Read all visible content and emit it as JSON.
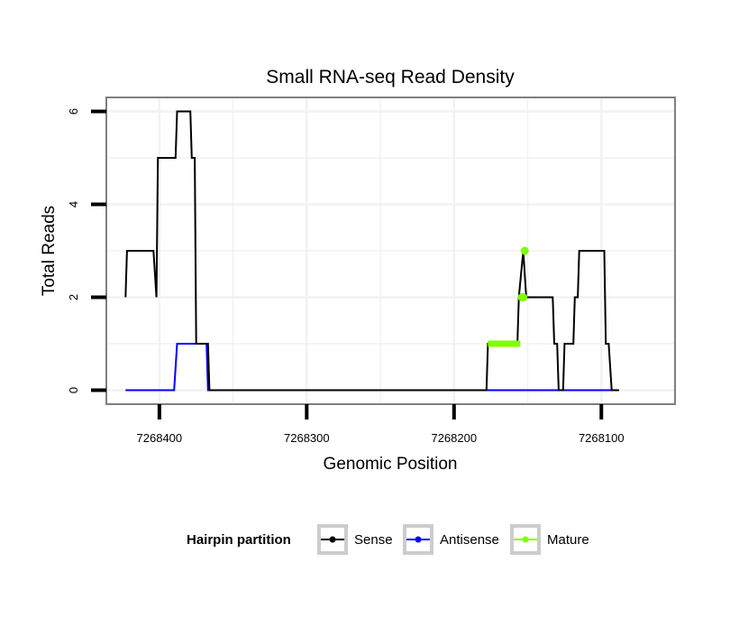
{
  "colors": {
    "sense": "#000000",
    "antisense": "#0000ff",
    "mature": "#7fff00",
    "panel_border": "#7f7f7f",
    "grid": "#f2f2f2",
    "legend_key_border": "#cccccc"
  },
  "chart_data": {
    "type": "line",
    "title": "Small RNA-seq Read Density",
    "xlabel": "Genomic Position",
    "ylabel": "Total Reads",
    "x_reversed": true,
    "xlim": [
      7268436,
      7268050
    ],
    "ylim": [
      -0.3,
      6.3
    ],
    "x_ticks": [
      7268400,
      7268300,
      7268200,
      7268100
    ],
    "x_tick_labels": [
      "7268400",
      "7268300",
      "7268200",
      "7268100"
    ],
    "y_ticks": [
      0,
      2,
      4,
      6
    ],
    "y_tick_labels": [
      "0",
      "2",
      "4",
      "6"
    ],
    "grid": true,
    "legend": {
      "title": "Hairpin partition",
      "position": "bottom",
      "entries": [
        "Sense",
        "Antisense",
        "Mature"
      ]
    },
    "series": [
      {
        "name": "Sense",
        "color": "#000000",
        "points": [
          [
            7268423,
            2
          ],
          [
            7268422,
            3
          ],
          [
            7268404,
            3
          ],
          [
            7268402,
            2
          ],
          [
            7268401,
            5
          ],
          [
            7268389,
            5
          ],
          [
            7268388,
            6
          ],
          [
            7268379,
            6
          ],
          [
            7268378,
            5
          ],
          [
            7268376,
            5
          ],
          [
            7268375,
            1
          ],
          [
            7268367,
            1
          ],
          [
            7268366,
            0
          ],
          [
            7268178,
            0
          ],
          [
            7268177,
            1
          ],
          [
            7268157,
            1
          ],
          [
            7268156,
            2
          ],
          [
            7268153,
            3
          ],
          [
            7268151,
            2
          ],
          [
            7268133,
            2
          ],
          [
            7268132,
            1
          ],
          [
            7268130,
            1
          ],
          [
            7268129,
            0
          ],
          [
            7268126,
            0
          ],
          [
            7268125,
            1
          ],
          [
            7268119,
            1
          ],
          [
            7268118,
            2
          ],
          [
            7268116,
            2
          ],
          [
            7268115,
            3
          ],
          [
            7268098,
            3
          ],
          [
            7268097,
            1
          ],
          [
            7268095,
            1
          ],
          [
            7268093,
            0
          ],
          [
            7268088,
            0
          ]
        ]
      },
      {
        "name": "Antisense",
        "color": "#0000ff",
        "points": [
          [
            7268423,
            0
          ],
          [
            7268390,
            0
          ],
          [
            7268388,
            1
          ],
          [
            7268368,
            1
          ],
          [
            7268367,
            0
          ],
          [
            7268090,
            0
          ]
        ]
      },
      {
        "name": "Mature",
        "color": "#7fff00",
        "points": [
          [
            7268177,
            1
          ],
          [
            7268155,
            1
          ]
        ],
        "markers": [
          [
            7268154,
            2
          ],
          [
            7268153,
            2
          ],
          [
            7268152,
            3
          ]
        ]
      }
    ]
  }
}
